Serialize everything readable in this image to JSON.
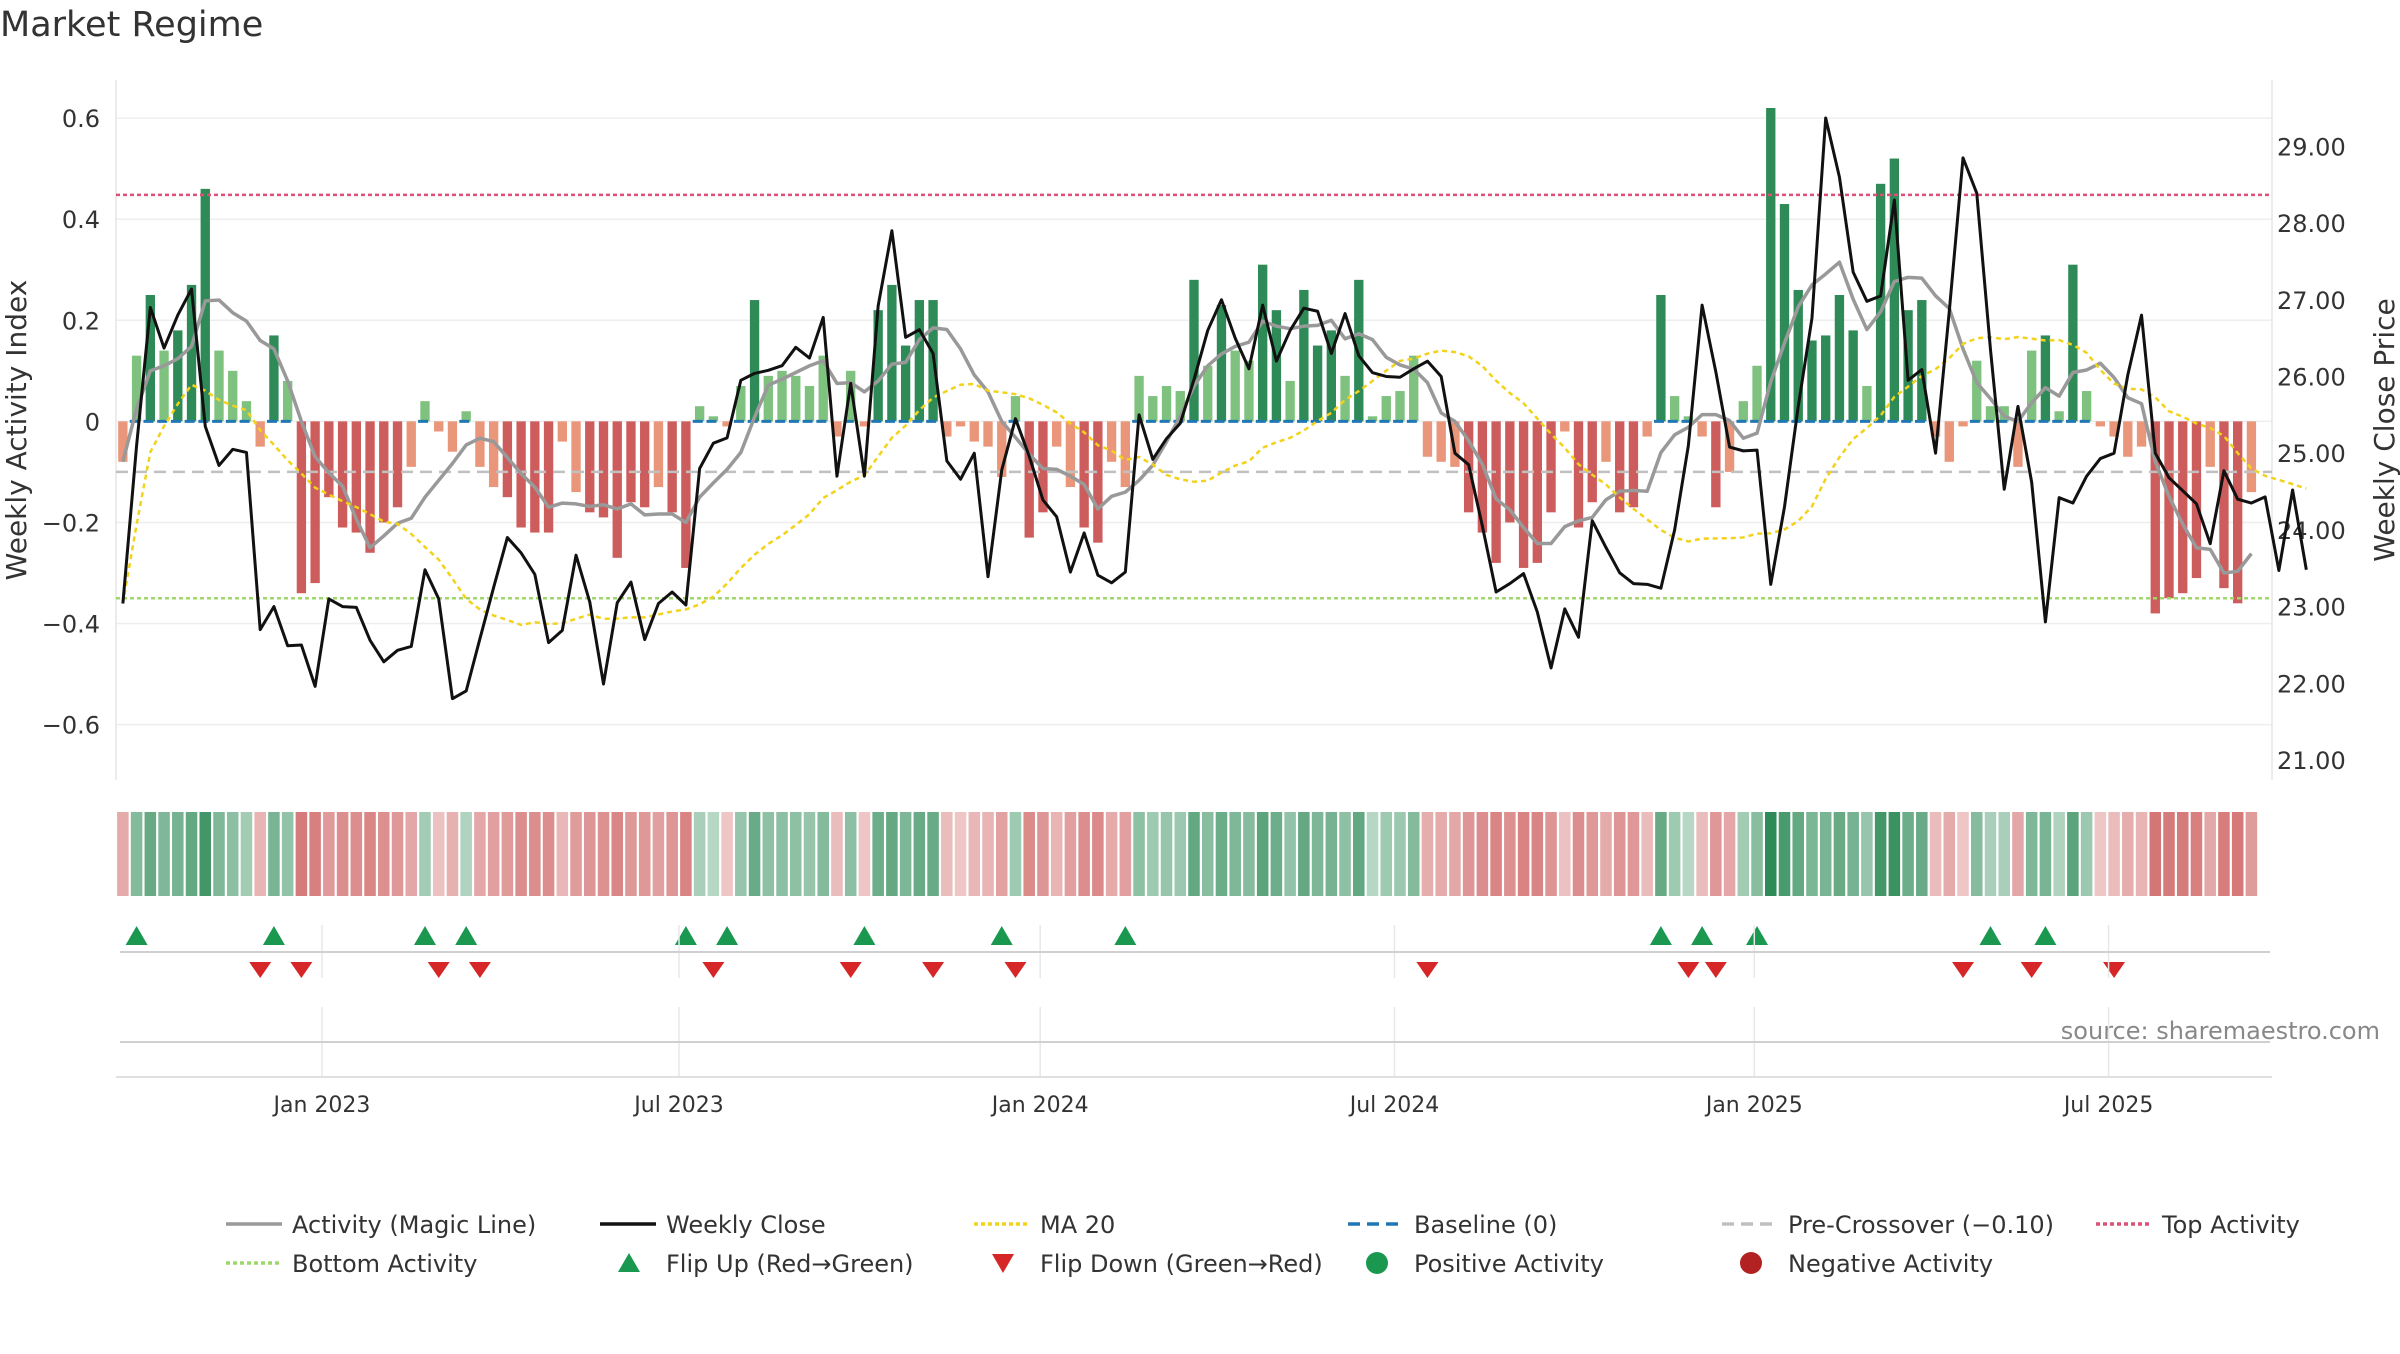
{
  "chart_data": {
    "type": "bar",
    "title": "Market Regime",
    "ylabel_left": "Weekly Activity Index",
    "ylabel_right": "Weekly Close Price",
    "source": "source: sharemaestro.com",
    "ylim_left": [
      -0.67,
      0.62
    ],
    "ylim_right": [
      21.0,
      29.5
    ],
    "yticks_left": [
      0.6,
      0.4,
      0.2,
      0,
      -0.2,
      -0.4,
      -0.6
    ],
    "yticks_left_labels": [
      "0.6",
      "0.4",
      "0.2",
      "0",
      "−0.2",
      "−0.4",
      "−0.6"
    ],
    "yticks_right": [
      29.0,
      28.0,
      27.0,
      26.0,
      25.0,
      24.0,
      23.0,
      22.0,
      21.0
    ],
    "yticks_right_labels": [
      "29.00",
      "28.00",
      "27.00",
      "26.00",
      "25.00",
      "24.00",
      "23.00",
      "22.00",
      "21.00"
    ],
    "x_week_range": [
      0,
      156
    ],
    "xticks": [
      {
        "week": 14.5,
        "label": "Jan 2023"
      },
      {
        "week": 40.5,
        "label": "Jul 2023"
      },
      {
        "week": 66.8,
        "label": "Jan 2024"
      },
      {
        "week": 92.6,
        "label": "Jul 2024"
      },
      {
        "week": 118.8,
        "label": "Jan 2025"
      },
      {
        "week": 144.6,
        "label": "Jul 2025"
      }
    ],
    "reference_lines": {
      "top_activity": 0.448,
      "baseline": 0,
      "pre_crossover": -0.1,
      "bottom_activity": -0.35
    },
    "activity_values": [
      -0.08,
      0.13,
      0.25,
      0.14,
      0.18,
      0.27,
      0.46,
      0.14,
      0.1,
      0.04,
      -0.05,
      0.17,
      0.08,
      -0.34,
      -0.32,
      -0.15,
      -0.21,
      -0.22,
      -0.26,
      -0.2,
      -0.17,
      -0.09,
      0.04,
      -0.02,
      -0.06,
      0.02,
      -0.09,
      -0.13,
      -0.15,
      -0.21,
      -0.22,
      -0.22,
      -0.04,
      -0.14,
      -0.18,
      -0.19,
      -0.27,
      -0.16,
      -0.17,
      -0.13,
      -0.18,
      -0.29,
      0.03,
      0.01,
      -0.01,
      0.07,
      0.24,
      0.09,
      0.1,
      0.09,
      0.07,
      0.13,
      -0.03,
      0.1,
      -0.01,
      0.22,
      0.27,
      0.15,
      0.24,
      0.24,
      -0.03,
      -0.01,
      -0.04,
      -0.05,
      -0.11,
      0.05,
      -0.23,
      -0.18,
      -0.05,
      -0.13,
      -0.21,
      -0.24,
      -0.08,
      -0.13,
      0.09,
      0.05,
      0.07,
      0.06,
      0.28,
      0.11,
      0.23,
      0.14,
      0.12,
      0.31,
      0.22,
      0.08,
      0.26,
      0.15,
      0.18,
      0.09,
      0.28,
      0.01,
      0.05,
      0.06,
      0.13,
      -0.07,
      -0.08,
      -0.09,
      -0.18,
      -0.22,
      -0.28,
      -0.2,
      -0.29,
      -0.28,
      -0.18,
      -0.02,
      -0.21,
      -0.16,
      -0.08,
      -0.18,
      -0.17,
      -0.03,
      0.25,
      0.05,
      0.01,
      -0.03,
      -0.17,
      -0.1,
      0.04,
      0.11,
      0.62,
      0.43,
      0.26,
      0.16,
      0.17,
      0.25,
      0.18,
      0.07,
      0.47,
      0.52,
      0.22,
      0.24,
      -0.03,
      -0.08,
      -0.01,
      0.12,
      0.03,
      0.03,
      -0.09,
      0.14,
      0.17,
      0.02,
      0.31,
      0.06,
      -0.01,
      -0.03,
      -0.07,
      -0.05,
      -0.38,
      -0.35,
      -0.34,
      -0.31,
      -0.09,
      -0.33,
      -0.36,
      -0.14
    ],
    "weekly_close": [
      23.04,
      25.1,
      26.9,
      26.37,
      26.8,
      27.14,
      25.35,
      24.84,
      25.05,
      25.01,
      22.7,
      23.0,
      22.49,
      22.5,
      21.96,
      23.1,
      23.0,
      22.99,
      22.56,
      22.28,
      22.43,
      22.48,
      23.48,
      23.1,
      21.8,
      21.9,
      22.58,
      23.25,
      23.9,
      23.7,
      23.42,
      22.53,
      22.69,
      23.67,
      23.06,
      21.99,
      23.05,
      23.32,
      22.57,
      23.04,
      23.19,
      23.02,
      24.8,
      25.13,
      25.2,
      25.95,
      26.04,
      26.08,
      26.14,
      26.38,
      26.24,
      26.77,
      24.7,
      25.91,
      24.7,
      26.92,
      27.9,
      26.51,
      26.61,
      26.3,
      24.9,
      24.66,
      25.0,
      23.39,
      24.78,
      25.45,
      24.96,
      24.39,
      24.17,
      23.45,
      23.96,
      23.41,
      23.31,
      23.45,
      25.5,
      24.92,
      25.19,
      25.39,
      25.96,
      26.6,
      27.0,
      26.5,
      26.1,
      26.93,
      26.2,
      26.6,
      26.89,
      26.85,
      26.3,
      26.82,
      26.27,
      26.05,
      26.0,
      25.99,
      26.1,
      26.2,
      26.0,
      25.0,
      24.85,
      24.05,
      23.19,
      23.3,
      23.43,
      22.93,
      22.2,
      22.97,
      22.6,
      24.12,
      23.77,
      23.44,
      23.3,
      23.29,
      23.24,
      24.0,
      25.1,
      26.93,
      26.06,
      25.08,
      25.03,
      25.04,
      23.29,
      24.3,
      25.61,
      26.76,
      29.37,
      28.6,
      27.36,
      26.98,
      27.05,
      28.3,
      25.95,
      26.09,
      25.0,
      26.85,
      28.85,
      28.39,
      26.35,
      24.53,
      25.61,
      24.62,
      22.8,
      24.42,
      24.35,
      24.7,
      24.93,
      25.0,
      26.02,
      26.8,
      25.0,
      24.68,
      24.51,
      24.34,
      23.82,
      24.77,
      24.4,
      24.35,
      24.43,
      23.47,
      24.52,
      23.48
    ]
  },
  "flip_up_weeks": [
    1,
    11,
    22,
    25,
    41,
    44,
    54,
    64,
    73,
    112,
    115,
    119,
    136,
    140
  ],
  "flip_down_weeks": [
    10,
    13,
    23,
    26,
    43,
    53,
    59,
    65,
    95,
    114,
    116,
    134,
    139,
    145
  ],
  "colors": {
    "strong_green": "#2e8b57",
    "light_green": "#7fc17f",
    "strong_red": "#cd5c5c",
    "light_red": "#e9967a",
    "magic_line": "#999999",
    "weekly_close": "#111111",
    "ma20": "#f2d21b",
    "baseline": "#1f77b4",
    "pre_crossover": "#c0c0c0",
    "top_activity": "#dc5078",
    "bottom_activity": "#9fd76a",
    "flip_up": "#1a9850",
    "flip_down": "#d62728",
    "positive_dot": "#1a9850",
    "negative_dot": "#b22222"
  },
  "legend": [
    {
      "label": "Activity (Magic Line)",
      "kind": "line",
      "color": "#999999",
      "dash": ""
    },
    {
      "label": "Weekly Close",
      "kind": "line",
      "color": "#111111",
      "dash": ""
    },
    {
      "label": "MA 20",
      "kind": "line",
      "color": "#f2d21b",
      "dash": "4,3"
    },
    {
      "label": "Baseline (0)",
      "kind": "line",
      "color": "#1f77b4",
      "dash": "12,7"
    },
    {
      "label": "Pre-Crossover (−0.10)",
      "kind": "line",
      "color": "#c0c0c0",
      "dash": "12,7"
    },
    {
      "label": "Top Activity",
      "kind": "line",
      "color": "#dc5078",
      "dash": "4,3"
    },
    {
      "label": "Bottom Activity",
      "kind": "line",
      "color": "#9fd76a",
      "dash": "4,3"
    },
    {
      "label": "Flip Up (Red→Green)",
      "kind": "tri-up",
      "color": "#1a9850",
      "dash": ""
    },
    {
      "label": "Flip Down (Green→Red)",
      "kind": "tri-down",
      "color": "#d62728",
      "dash": ""
    },
    {
      "label": "Positive Activity",
      "kind": "dot",
      "color": "#1a9850",
      "dash": ""
    },
    {
      "label": "Negative Activity",
      "kind": "dot",
      "color": "#b22222",
      "dash": ""
    }
  ]
}
